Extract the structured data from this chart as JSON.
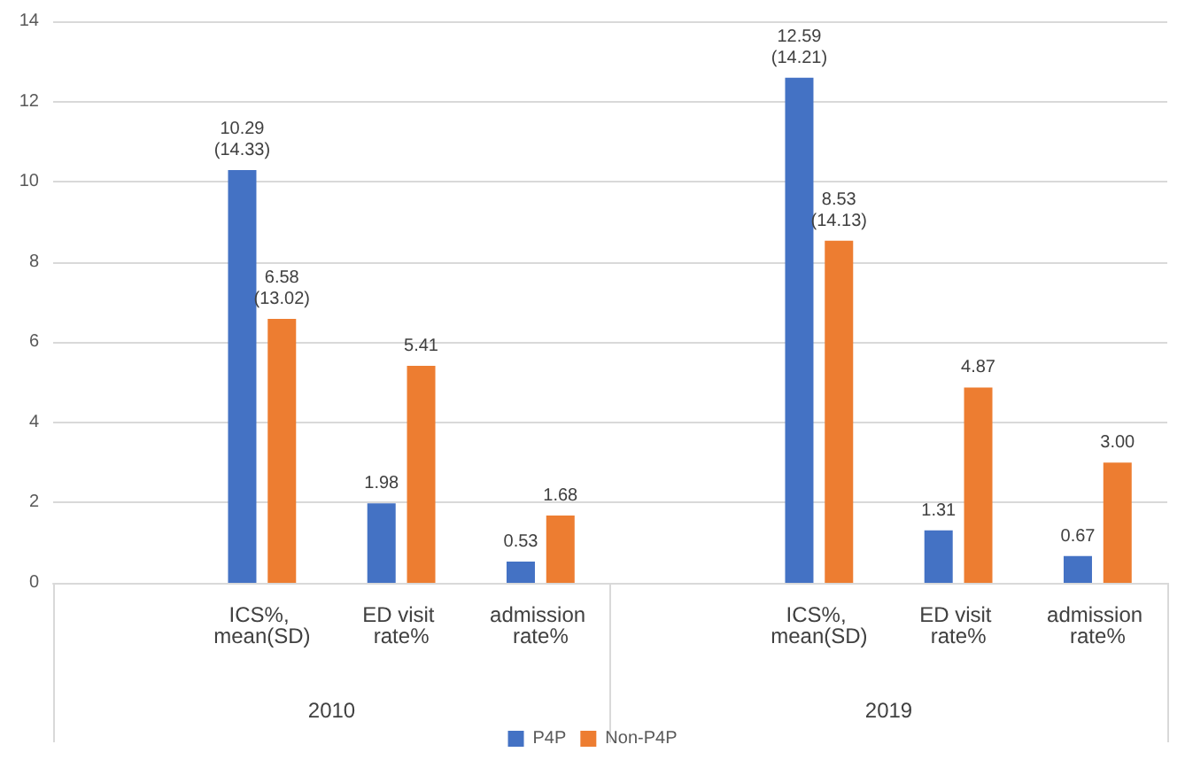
{
  "chart_data": {
    "type": "bar",
    "categories": [
      null,
      "ICS%, mean(SD)",
      "ED visit rate%",
      "admission rate%",
      null,
      "ICS%, mean(SD)",
      "ED visit rate%",
      "admission rate%"
    ],
    "series": [
      {
        "name": "P4P",
        "color": "#4472c4",
        "values": [
          null,
          10.29,
          1.98,
          0.53,
          null,
          12.59,
          1.31,
          0.67
        ],
        "value_labels": [
          null,
          "10.29\n(14.33)",
          "1.98",
          "0.53",
          null,
          "12.59\n(14.21)",
          "1.31",
          "0.67"
        ]
      },
      {
        "name": "Non-P4P",
        "color": "#ed7d31",
        "values": [
          null,
          6.58,
          5.41,
          1.68,
          null,
          8.53,
          4.87,
          3.0
        ],
        "value_labels": [
          null,
          "6.58\n(13.02)",
          "5.41",
          "1.68",
          null,
          "8.53\n(14.13)",
          "4.87",
          "3.00"
        ]
      }
    ],
    "annotations": [
      "2010",
      "2019"
    ],
    "ylim": [
      0,
      14
    ],
    "yticks": [
      0,
      2,
      4,
      6,
      8,
      10,
      12,
      14
    ],
    "grid": "y",
    "legend": "bottom"
  }
}
